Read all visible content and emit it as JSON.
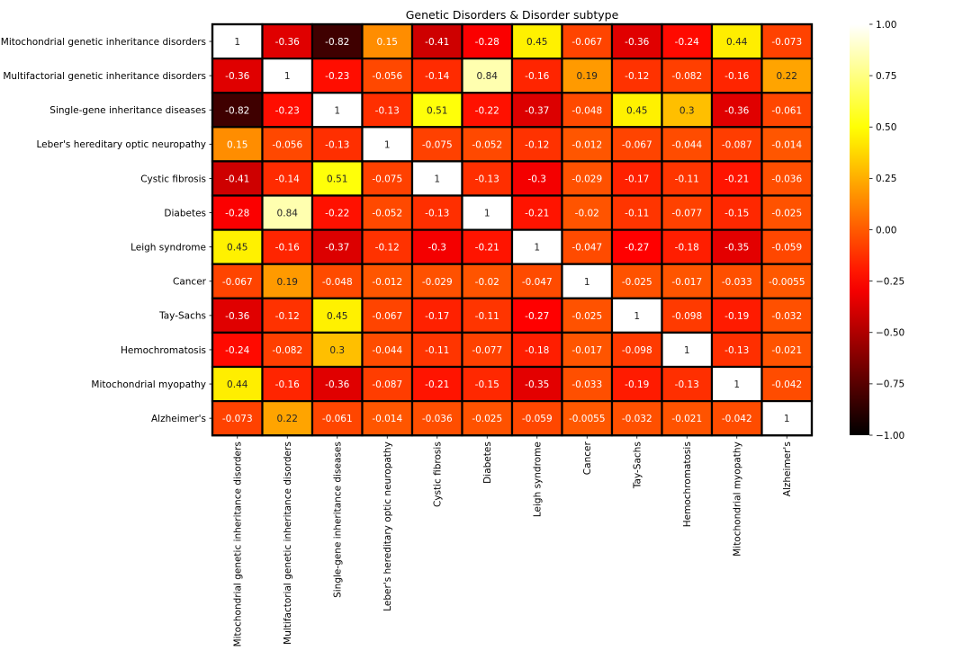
{
  "chart_data": {
    "type": "heatmap",
    "title": "Genetic Disorders & Disorder subtype",
    "xlabel": "",
    "ylabel": "",
    "labels": [
      "Mitochondrial genetic inheritance disorders",
      "Multifactorial genetic inheritance disorders",
      "Single-gene inheritance diseases",
      "Leber's hereditary optic neuropathy",
      "Cystic fibrosis",
      "Diabetes",
      "Leigh syndrome",
      "Cancer",
      "Tay-Sachs",
      "Hemochromatosis",
      "Mitochondrial myopathy",
      "Alzheimer's"
    ],
    "values": [
      [
        1,
        -0.36,
        -0.82,
        0.15,
        -0.41,
        -0.28,
        0.45,
        -0.067,
        -0.36,
        -0.24,
        0.44,
        -0.073
      ],
      [
        -0.36,
        1,
        -0.23,
        -0.056,
        -0.14,
        0.84,
        -0.16,
        0.19,
        -0.12,
        -0.082,
        -0.16,
        0.22
      ],
      [
        -0.82,
        -0.23,
        1,
        -0.13,
        0.51,
        -0.22,
        -0.37,
        -0.048,
        0.45,
        0.3,
        -0.36,
        -0.061
      ],
      [
        0.15,
        -0.056,
        -0.13,
        1,
        -0.075,
        -0.052,
        -0.12,
        -0.012,
        -0.067,
        -0.044,
        -0.087,
        -0.014
      ],
      [
        -0.41,
        -0.14,
        0.51,
        -0.075,
        1,
        -0.13,
        -0.3,
        -0.029,
        -0.17,
        -0.11,
        -0.21,
        -0.036
      ],
      [
        -0.28,
        0.84,
        -0.22,
        -0.052,
        -0.13,
        1,
        -0.21,
        -0.02,
        -0.11,
        -0.077,
        -0.15,
        -0.025
      ],
      [
        0.45,
        -0.16,
        -0.37,
        -0.12,
        -0.3,
        -0.21,
        1,
        -0.047,
        -0.27,
        -0.18,
        -0.35,
        -0.059
      ],
      [
        -0.067,
        0.19,
        -0.048,
        -0.012,
        -0.029,
        -0.02,
        -0.047,
        1,
        -0.025,
        -0.017,
        -0.033,
        -0.0055
      ],
      [
        -0.36,
        -0.12,
        0.45,
        -0.067,
        -0.17,
        -0.11,
        -0.27,
        -0.025,
        1,
        -0.098,
        -0.19,
        -0.032
      ],
      [
        -0.24,
        -0.082,
        0.3,
        -0.044,
        -0.11,
        -0.077,
        -0.18,
        -0.017,
        -0.098,
        1,
        -0.13,
        -0.021
      ],
      [
        0.44,
        -0.16,
        -0.36,
        -0.087,
        -0.21,
        -0.15,
        -0.35,
        -0.033,
        -0.19,
        -0.13,
        1,
        -0.042
      ],
      [
        -0.073,
        0.22,
        -0.061,
        -0.014,
        -0.036,
        -0.025,
        -0.059,
        -0.0055,
        -0.032,
        -0.021,
        -0.042,
        1
      ]
    ],
    "colorbar": {
      "colormap": "hot",
      "range": [
        -1,
        1
      ],
      "ticks": [
        -1,
        -0.75,
        -0.5,
        -0.25,
        0,
        0.25,
        0.5,
        0.75,
        1
      ],
      "tick_labels": [
        "−1.00",
        "−0.75",
        "−0.50",
        "−0.25",
        "0.00",
        "0.25",
        "0.50",
        "0.75",
        "1.00"
      ]
    },
    "cell_border_color": "#000000",
    "annotations": true
  }
}
